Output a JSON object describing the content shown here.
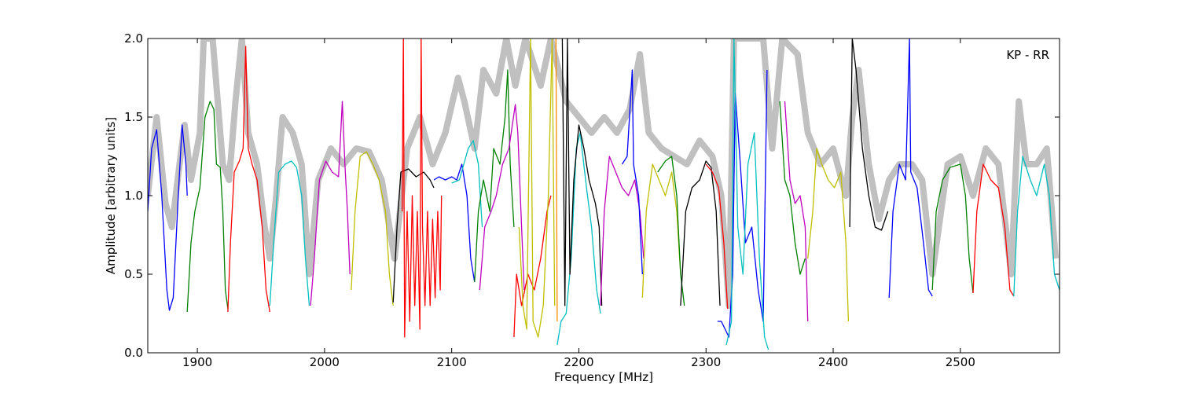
{
  "chart_data": {
    "type": "line",
    "xlabel": "Frequency [MHz]",
    "ylabel": "Amplitude [arbitrary units]",
    "annotation": "KP - RR",
    "xlim": [
      1861,
      2578
    ],
    "ylim": [
      0,
      2
    ],
    "xticks": [
      1900,
      2000,
      2100,
      2200,
      2300,
      2400,
      2500
    ],
    "yticks": [
      {
        "value": 0,
        "label": "0.0"
      },
      0.5,
      {
        "value": 1,
        "label": "1.0"
      },
      1.5,
      {
        "value": 2,
        "label": "2.0"
      }
    ],
    "series": [
      {
        "color": "#c0c0c0",
        "x": [
          1861,
          1868,
          1875,
          1880,
          1886,
          1890,
          1895,
          1902,
          1905,
          1912,
          1917,
          1920,
          1925,
          1930,
          1935,
          1940,
          1947,
          1953,
          1957,
          1962,
          1967,
          1975,
          1982,
          1988,
          1995,
          2005,
          2015,
          2025,
          2035,
          2045,
          2055,
          2065,
          2075,
          2085,
          2095,
          2105,
          2110,
          2118,
          2125,
          2135,
          2143,
          2150,
          2158,
          2170,
          2178,
          2190,
          2200,
          2210,
          2220,
          2230,
          2240,
          2248,
          2255,
          2265,
          2275,
          2285,
          2295,
          2305,
          2312,
          2318,
          2322,
          2345,
          2352,
          2360,
          2372,
          2380,
          2390,
          2400,
          2410,
          2415,
          2420,
          2428,
          2436,
          2444,
          2452,
          2462,
          2470,
          2478,
          2490,
          2500,
          2510,
          2520,
          2530,
          2540,
          2546,
          2552,
          2560,
          2568,
          2575
        ],
        "values": [
          1.0,
          1.5,
          0.95,
          0.8,
          1.2,
          1.45,
          1.1,
          1.4,
          2.0,
          2.0,
          1.5,
          1.2,
          1.1,
          1.6,
          2.0,
          1.4,
          1.2,
          0.8,
          0.6,
          1.0,
          1.5,
          1.4,
          1.2,
          0.5,
          1.1,
          1.3,
          1.2,
          1.3,
          1.28,
          1.1,
          0.6,
          1.3,
          1.5,
          1.2,
          1.4,
          1.75,
          1.6,
          1.3,
          1.8,
          1.65,
          2.0,
          1.7,
          2.0,
          1.7,
          2.0,
          1.6,
          1.5,
          1.4,
          1.5,
          1.4,
          1.55,
          1.9,
          1.4,
          1.3,
          1.25,
          1.2,
          1.35,
          1.25,
          1.0,
          0.3,
          2.0,
          2.0,
          1.3,
          2.0,
          1.9,
          1.4,
          1.2,
          1.3,
          1.0,
          1.5,
          1.8,
          1.2,
          0.85,
          1.1,
          1.2,
          1.2,
          1.1,
          0.5,
          1.2,
          1.25,
          1.0,
          1.3,
          1.2,
          0.5,
          1.6,
          1.2,
          1.2,
          1.3,
          0.6
        ]
      },
      {
        "color": "#0000ff",
        "x": [
          1861,
          1864,
          1868,
          1872,
          1876,
          1878,
          1881,
          1885,
          1888,
          1891,
          1892
        ],
        "values": [
          0.9,
          1.3,
          1.42,
          1.0,
          0.4,
          0.27,
          0.35,
          1.0,
          1.45,
          1.2,
          1.0
        ]
      },
      {
        "color": "#008000",
        "x": [
          1892,
          1895,
          1898,
          1902,
          1906,
          1910,
          1913,
          1915,
          1918,
          1920,
          1922,
          1924
        ],
        "values": [
          0.26,
          0.7,
          0.9,
          1.05,
          1.5,
          1.6,
          1.55,
          1.2,
          1.18,
          0.9,
          0.4,
          0.28
        ]
      },
      {
        "color": "#ff0000",
        "x": [
          1924,
          1926,
          1929,
          1933,
          1936,
          1938,
          1940,
          1943,
          1947,
          1951,
          1954,
          1957
        ],
        "values": [
          0.26,
          0.7,
          1.15,
          1.22,
          1.3,
          1.95,
          1.3,
          1.2,
          1.1,
          0.8,
          0.4,
          0.26
        ]
      },
      {
        "color": "#00bfbf",
        "x": [
          1957,
          1960,
          1964,
          1969,
          1974,
          1978,
          1982,
          1985,
          1988
        ],
        "values": [
          0.3,
          0.7,
          1.15,
          1.2,
          1.22,
          1.18,
          1.0,
          0.6,
          0.3
        ]
      },
      {
        "color": "#bf00bf",
        "x": [
          1989,
          1992,
          1996,
          2001,
          2006,
          2011,
          2014,
          2016,
          2018,
          2020
        ],
        "values": [
          0.3,
          0.6,
          1.1,
          1.22,
          1.15,
          1.12,
          1.6,
          1.2,
          0.9,
          0.5
        ]
      },
      {
        "color": "#bfbf00",
        "x": [
          2021,
          2024,
          2028,
          2033,
          2038,
          2043,
          2048,
          2051,
          2054
        ],
        "values": [
          0.4,
          0.9,
          1.25,
          1.28,
          1.2,
          1.1,
          0.9,
          0.5,
          0.3
        ]
      },
      {
        "color": "#000000",
        "x": [
          2054,
          2057,
          2060,
          2066,
          2072,
          2078,
          2083,
          2086
        ],
        "values": [
          0.32,
          0.8,
          1.15,
          1.17,
          1.12,
          1.15,
          1.1,
          1.05
        ]
      },
      {
        "color": "#ff0000",
        "x": [
          2061,
          2062,
          2063,
          2065,
          2067,
          2069,
          2071,
          2073,
          2075,
          2076,
          2077,
          2079,
          2081,
          2083,
          2085,
          2087,
          2089,
          2091,
          2092
        ],
        "values": [
          0.9,
          2.0,
          0.1,
          0.9,
          0.2,
          1.0,
          0.3,
          0.9,
          0.15,
          2.0,
          0.8,
          0.3,
          0.9,
          0.3,
          0.85,
          0.35,
          0.9,
          0.4,
          1.0
        ]
      },
      {
        "color": "#0000ff",
        "x": [
          2086,
          2090,
          2095,
          2100,
          2104,
          2108,
          2112,
          2115,
          2118
        ],
        "values": [
          1.1,
          1.12,
          1.1,
          1.12,
          1.1,
          1.2,
          1.0,
          0.6,
          0.45
        ]
      },
      {
        "color": "#00bfbf",
        "x": [
          2100,
          2106,
          2113,
          2117,
          2121,
          2124
        ],
        "values": [
          1.08,
          1.1,
          1.3,
          1.35,
          1.2,
          0.8
        ]
      },
      {
        "color": "#008000",
        "x": [
          2118,
          2121,
          2125,
          2130,
          2133,
          2138,
          2142,
          2144,
          2146,
          2149
        ],
        "values": [
          0.45,
          0.9,
          1.1,
          0.9,
          1.3,
          1.2,
          1.5,
          1.8,
          1.2,
          0.8
        ]
      },
      {
        "color": "#bf00bf",
        "x": [
          2122,
          2126,
          2131,
          2135,
          2140,
          2145,
          2150,
          2152,
          2155,
          2157
        ],
        "values": [
          0.4,
          0.8,
          0.9,
          1.0,
          1.2,
          1.3,
          1.58,
          1.4,
          0.8,
          0.4
        ]
      },
      {
        "color": "#ff0000",
        "x": [
          2149,
          2151,
          2155,
          2160,
          2165,
          2170,
          2175,
          2178
        ],
        "values": [
          0.1,
          0.5,
          0.3,
          0.5,
          0.4,
          0.6,
          0.9,
          1.0
        ]
      },
      {
        "color": "#bfbf00",
        "x": [
          2153,
          2156,
          2159,
          2162,
          2164,
          2168,
          2172,
          2176,
          2179,
          2181
        ],
        "values": [
          0.8,
          0.3,
          0.15,
          2.0,
          0.2,
          0.1,
          0.3,
          1.0,
          2.0,
          0.3
        ]
      },
      {
        "color": "#ff8c00",
        "x": [
          2182,
          2183
        ],
        "values": [
          2.0,
          0.2
        ]
      },
      {
        "color": "#00bfbf",
        "x": [
          2183,
          2186,
          2190,
          2194,
          2198,
          2201,
          2206,
          2210,
          2214,
          2217
        ],
        "values": [
          0.05,
          0.2,
          0.25,
          0.6,
          1.3,
          1.4,
          1.05,
          0.8,
          0.4,
          0.25
        ]
      },
      {
        "color": "#000000",
        "x": [
          2187,
          2189,
          2191,
          2193,
          2196,
          2200,
          2204,
          2208,
          2213,
          2216,
          2218
        ],
        "values": [
          2.0,
          0.3,
          2.0,
          0.5,
          1.1,
          1.45,
          1.3,
          1.1,
          0.95,
          0.8,
          0.3
        ]
      },
      {
        "color": "#bf00bf",
        "x": [
          2217,
          2220,
          2224,
          2229,
          2234,
          2239,
          2244,
          2248,
          2251
        ],
        "values": [
          0.3,
          0.9,
          1.25,
          1.15,
          1.05,
          1.0,
          1.1,
          0.9,
          0.6
        ]
      },
      {
        "color": "#0000ff",
        "x": [
          2234,
          2238,
          2242,
          2243,
          2247,
          2250
        ],
        "values": [
          1.2,
          1.25,
          1.8,
          1.2,
          1.0,
          0.5
        ]
      },
      {
        "color": "#bfbf00",
        "x": [
          2250,
          2253,
          2258,
          2263,
          2268,
          2273,
          2277,
          2280
        ],
        "values": [
          0.35,
          0.9,
          1.2,
          1.1,
          1.0,
          1.15,
          0.9,
          0.5
        ]
      },
      {
        "color": "#008000",
        "x": [
          2262,
          2268,
          2273,
          2277,
          2280,
          2283
        ],
        "values": [
          1.15,
          1.22,
          1.25,
          1.0,
          0.5,
          0.3
        ]
      },
      {
        "color": "#000000",
        "x": [
          2280,
          2284,
          2289,
          2295,
          2300,
          2304,
          2308,
          2311
        ],
        "values": [
          0.3,
          0.9,
          1.05,
          1.1,
          1.22,
          1.18,
          0.9,
          0.3
        ]
      },
      {
        "color": "#ff0000",
        "x": [
          2300,
          2305,
          2310,
          2314,
          2317
        ],
        "values": [
          1.2,
          1.15,
          1.05,
          0.7,
          0.28
        ]
      },
      {
        "color": "#0000ff",
        "x": [
          2309,
          2312,
          2318,
          2321,
          2323,
          2327,
          2331,
          2336,
          2341,
          2345,
          2348
        ],
        "values": [
          0.2,
          0.2,
          0.1,
          0.5,
          1.65,
          1.2,
          0.7,
          0.8,
          0.4,
          0.2,
          1.8
        ]
      },
      {
        "color": "#00bfbf",
        "x": [
          2316,
          2320,
          2322,
          2325,
          2329,
          2333,
          2338,
          2342,
          2346,
          2349
        ],
        "values": [
          0.05,
          0.2,
          2.0,
          0.8,
          0.5,
          1.2,
          1.4,
          0.6,
          0.1,
          0.02
        ]
      },
      {
        "color": "#008000",
        "x": [
          2358,
          2362,
          2366,
          2370,
          2374,
          2378
        ],
        "values": [
          1.6,
          1.1,
          1.0,
          0.7,
          0.5,
          0.6
        ]
      },
      {
        "color": "#bf00bf",
        "x": [
          2362,
          2366,
          2370,
          2374,
          2378,
          2380
        ],
        "values": [
          1.6,
          1.1,
          0.95,
          1.0,
          0.8,
          0.2
        ]
      },
      {
        "color": "#bfbf00",
        "x": [
          2380,
          2384,
          2387,
          2391,
          2396,
          2401,
          2406,
          2410,
          2412
        ],
        "values": [
          0.6,
          0.9,
          1.3,
          1.2,
          1.1,
          1.05,
          1.15,
          0.7,
          0.2
        ]
      },
      {
        "color": "#000000",
        "x": [
          2413,
          2415,
          2418,
          2423,
          2428,
          2433,
          2438,
          2443
        ],
        "values": [
          0.8,
          2.0,
          1.8,
          1.3,
          1.0,
          0.8,
          0.78,
          0.9
        ]
      },
      {
        "color": "#0000ff",
        "x": [
          2444,
          2447,
          2452,
          2457,
          2460,
          2461,
          2466,
          2471,
          2475,
          2478
        ],
        "values": [
          0.35,
          0.9,
          1.2,
          1.1,
          2.0,
          1.15,
          1.05,
          0.7,
          0.4,
          0.36
        ]
      },
      {
        "color": "#008000",
        "x": [
          2478,
          2481,
          2486,
          2492,
          2500,
          2504,
          2507,
          2510
        ],
        "values": [
          0.4,
          0.9,
          1.1,
          1.18,
          1.2,
          1.0,
          0.6,
          0.38
        ]
      },
      {
        "color": "#ff0000",
        "x": [
          2510,
          2513,
          2518,
          2524,
          2530,
          2535,
          2539,
          2542
        ],
        "values": [
          0.38,
          0.9,
          1.2,
          1.1,
          1.05,
          0.8,
          0.4,
          0.36
        ]
      },
      {
        "color": "#00bfbf",
        "x": [
          2542,
          2545,
          2549,
          2555,
          2560,
          2566,
          2570,
          2574,
          2578
        ],
        "values": [
          0.36,
          0.9,
          1.25,
          1.1,
          1.0,
          1.2,
          1.0,
          0.5,
          0.4
        ]
      }
    ]
  }
}
